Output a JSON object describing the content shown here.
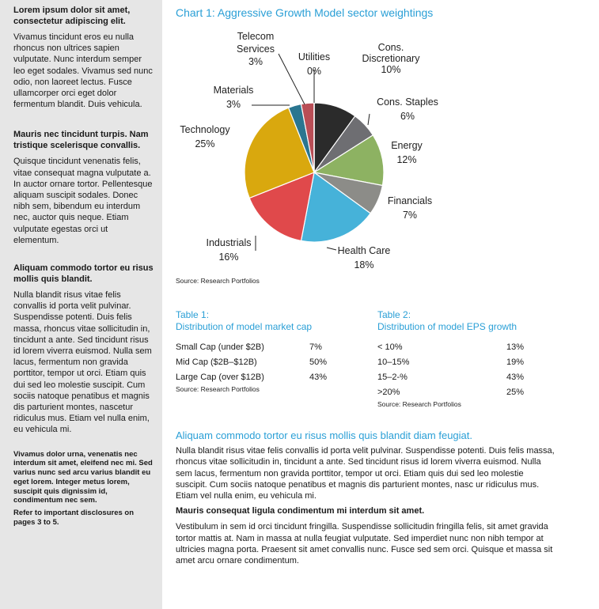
{
  "sidebar": {
    "sections": [
      {
        "heading": "Lorem ipsum dolor sit amet, consectetur adipiscing elit.",
        "body": "Vivamus tincidunt eros eu nulla rhoncus non ultrices sapien vulputate. Nunc interdum semper leo eget sodales. Vivamus sed nunc odio, non laoreet lectus. Fusce ullamcorper orci eget dolor fermentum blandit. Duis vehicula."
      },
      {
        "heading": "Mauris nec tincidunt turpis. Nam tristique scelerisque convallis.",
        "body": "Quisque tincidunt venenatis felis, vitae consequat magna vulputate a. In auctor ornare tortor. Pellentesque aliquam suscipit sodales. Donec nibh sem, bibendum eu interdum nec, auctor quis neque. Etiam vulputate egestas orci ut elementum."
      },
      {
        "heading": "Aliquam commodo tortor eu risus mollis quis blandit.",
        "body": "Nulla blandit risus vitae felis convallis id porta velit pulvinar. Suspendisse potenti. Duis felis massa, rhoncus vitae sollicitudin in, tincidunt a ante. Sed tincidunt risus id lorem viverra euismod. Nulla sem lacus, fermentum non gravida porttitor, tempor ut orci. Etiam quis dui sed leo molestie suscipit. Cum sociis natoque penatibus et magnis dis parturient montes, nascetur ridiculus mus. Etiam vel nulla enim, eu vehicula mi."
      }
    ],
    "footnote": "Vivamus dolor urna, venenatis nec interdum sit amet, eleifend nec mi. Sed varius nunc sed arcu varius blandit eu eget lorem. Integer metus lorem, suscipit quis dignissim id, condimentum nec sem.",
    "disclosure": "Refer to important disclosures on pages 3 to 5."
  },
  "chart": {
    "title": "Chart 1: Aggressive Growth Model sector weightings",
    "source": "Source: Research Portfolios"
  },
  "chart_data": {
    "type": "pie",
    "title": "Chart 1: Aggressive Growth Model sector weightings",
    "slices": [
      {
        "label": "Cons. Discretionary",
        "value": 10,
        "display": "10%",
        "color": "#2b2b2b"
      },
      {
        "label": "Cons. Staples",
        "value": 6,
        "display": "6%",
        "color": "#6e6e72"
      },
      {
        "label": "Energy",
        "value": 12,
        "display": "12%",
        "color": "#8db262"
      },
      {
        "label": "Financials",
        "value": 7,
        "display": "7%",
        "color": "#8c8c88"
      },
      {
        "label": "Health Care",
        "value": 18,
        "display": "18%",
        "color": "#46b2d9"
      },
      {
        "label": "Industrials",
        "value": 16,
        "display": "16%",
        "color": "#e0494b"
      },
      {
        "label": "Technology",
        "value": 25,
        "display": "25%",
        "color": "#d9a80e"
      },
      {
        "label": "Materials",
        "value": 3,
        "display": "3%",
        "color": "#2a7690"
      },
      {
        "label": "Telecom Services",
        "value": 3,
        "display": "3%",
        "color": "#b94e56"
      },
      {
        "label": "Utilities",
        "value": 0,
        "display": "0%",
        "color": "#aa3344"
      }
    ]
  },
  "table1": {
    "title": "Table 1:\nDistribution of model market cap",
    "rows": [
      {
        "label": "Small Cap (under $2B)",
        "value": "7%"
      },
      {
        "label": "Mid Cap ($2B–$12B)",
        "value": "50%"
      },
      {
        "label": "Large Cap (over $12B)",
        "value": "43%"
      }
    ],
    "source": "Source: Research Portfolios"
  },
  "table2": {
    "title": "Table 2:\nDistribution of model EPS growth",
    "rows": [
      {
        "label": "< 10%",
        "value": "13%"
      },
      {
        "label": "10–15%",
        "value": "19%"
      },
      {
        "label": "15–2-%",
        "value": "43%"
      },
      {
        "label": ">20%",
        "value": "25%"
      }
    ],
    "source": "Source: Research Portfolios"
  },
  "article": {
    "title": "Aliquam commodo tortor eu risus mollis quis blandit diam feugiat.",
    "paragraph1": "Nulla blandit risus vitae felis convallis id porta velit pulvinar. Suspendisse potenti. Duis felis massa, rhoncus vitae sollicitudin in, tincidunt a ante. Sed tincidunt risus id lorem viverra euismod. Nulla sem lacus, fermentum non gravida porttitor, tempor ut orci. Etiam quis dui sed leo molestie suscipit. Cum sociis natoque penatibus et magnis dis parturient montes, nasc ur ridiculus mus. Etiam vel nulla enim, eu vehicula mi.",
    "subheading": "Mauris consequat ligula condimentum mi interdum sit amet.",
    "paragraph2": "Vestibulum in sem id orci tincidunt fringilla. Suspendisse sollicitudin fringilla felis, sit amet gravida tortor mattis at. Nam in massa at nulla feugiat vulputate. Sed imperdiet nunc non nibh tempor at ultricies magna porta. Praesent sit amet convallis nunc. Fusce sed sem orci. Quisque et massa sit amet arcu ornare condimentum."
  }
}
